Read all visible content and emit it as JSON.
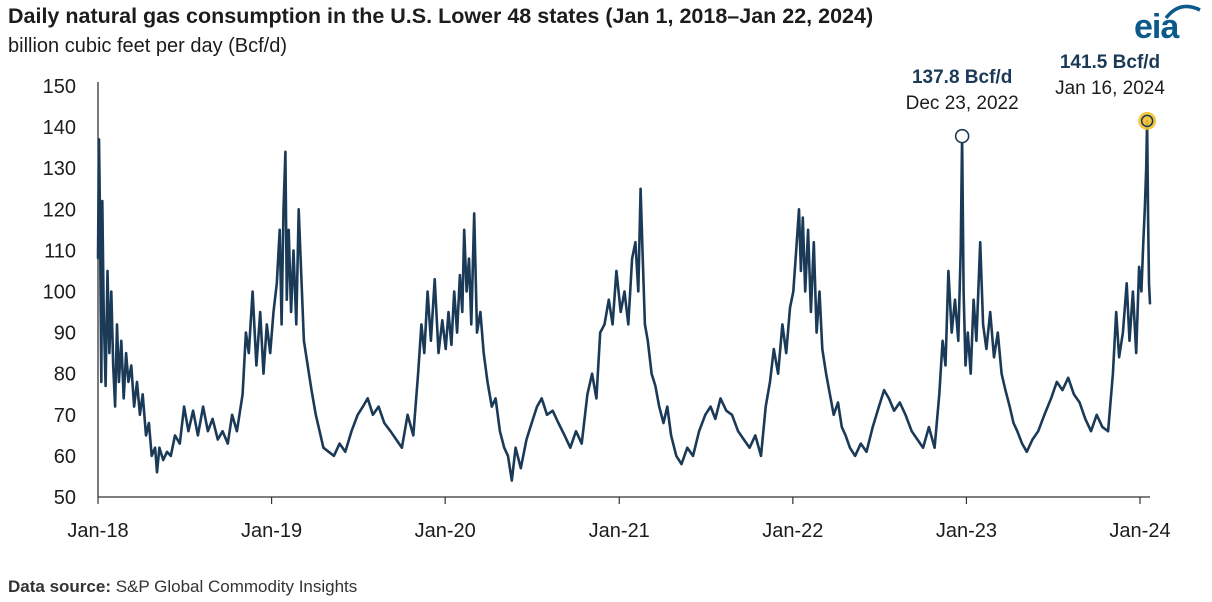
{
  "header": {
    "title": "Daily natural gas consumption in the U.S. Lower 48 states (Jan 1, 2018–Jan 22, 2024)",
    "subtitle": "billion cubic feet per day (Bcf/d)",
    "logo_text": "eia"
  },
  "footer": {
    "source_label": "Data source:",
    "source_value": " S&P Global Commodity Insights"
  },
  "colors": {
    "line": "#1b3a57",
    "highlight": "#f2c12e",
    "axis": "#333333"
  },
  "chart_data": {
    "type": "line",
    "title": "Daily natural gas consumption in the U.S. Lower 48 states (Jan 1, 2018–Jan 22, 2024)",
    "ylabel": "billion cubic feet per day (Bcf/d)",
    "xlabel": "",
    "ylim": [
      50,
      150
    ],
    "yticks": [
      50,
      60,
      70,
      80,
      90,
      100,
      110,
      120,
      130,
      140,
      150
    ],
    "xlim": [
      "2018-01-01",
      "2024-01-22"
    ],
    "xticks": [
      {
        "date": "2018-01-01",
        "label": "Jan-18"
      },
      {
        "date": "2019-01-01",
        "label": "Jan-19"
      },
      {
        "date": "2020-01-01",
        "label": "Jan-20"
      },
      {
        "date": "2021-01-01",
        "label": "Jan-21"
      },
      {
        "date": "2022-01-01",
        "label": "Jan-22"
      },
      {
        "date": "2023-01-01",
        "label": "Jan-23"
      },
      {
        "date": "2024-01-01",
        "label": "Jan-24"
      }
    ],
    "grid": false,
    "series": [
      {
        "points": [
          [
            "2018-01-01",
            108
          ],
          [
            "2018-01-03",
            137
          ],
          [
            "2018-01-05",
            120
          ],
          [
            "2018-01-08",
            78
          ],
          [
            "2018-01-10",
            122
          ],
          [
            "2018-01-13",
            95
          ],
          [
            "2018-01-17",
            77
          ],
          [
            "2018-01-21",
            105
          ],
          [
            "2018-01-25",
            85
          ],
          [
            "2018-01-29",
            100
          ],
          [
            "2018-02-02",
            82
          ],
          [
            "2018-02-06",
            72
          ],
          [
            "2018-02-10",
            92
          ],
          [
            "2018-02-14",
            78
          ],
          [
            "2018-02-19",
            88
          ],
          [
            "2018-02-24",
            74
          ],
          [
            "2018-03-01",
            85
          ],
          [
            "2018-03-06",
            78
          ],
          [
            "2018-03-12",
            82
          ],
          [
            "2018-03-18",
            72
          ],
          [
            "2018-03-24",
            78
          ],
          [
            "2018-03-30",
            70
          ],
          [
            "2018-04-05",
            75
          ],
          [
            "2018-04-12",
            65
          ],
          [
            "2018-04-18",
            68
          ],
          [
            "2018-04-24",
            60
          ],
          [
            "2018-05-01",
            62
          ],
          [
            "2018-05-05",
            56
          ],
          [
            "2018-05-10",
            62
          ],
          [
            "2018-05-18",
            59
          ],
          [
            "2018-05-26",
            61
          ],
          [
            "2018-06-03",
            60
          ],
          [
            "2018-06-12",
            65
          ],
          [
            "2018-06-22",
            63
          ],
          [
            "2018-07-01",
            72
          ],
          [
            "2018-07-10",
            66
          ],
          [
            "2018-07-20",
            71
          ],
          [
            "2018-07-30",
            65
          ],
          [
            "2018-08-10",
            72
          ],
          [
            "2018-08-20",
            66
          ],
          [
            "2018-08-30",
            69
          ],
          [
            "2018-09-10",
            64
          ],
          [
            "2018-09-20",
            66
          ],
          [
            "2018-10-01",
            63
          ],
          [
            "2018-10-10",
            70
          ],
          [
            "2018-10-20",
            66
          ],
          [
            "2018-11-01",
            75
          ],
          [
            "2018-11-08",
            90
          ],
          [
            "2018-11-14",
            85
          ],
          [
            "2018-11-22",
            100
          ],
          [
            "2018-11-30",
            82
          ],
          [
            "2018-12-08",
            95
          ],
          [
            "2018-12-15",
            80
          ],
          [
            "2018-12-22",
            92
          ],
          [
            "2018-12-29",
            85
          ],
          [
            "2019-01-05",
            95
          ],
          [
            "2019-01-12",
            102
          ],
          [
            "2019-01-18",
            115
          ],
          [
            "2019-01-22",
            92
          ],
          [
            "2019-01-26",
            120
          ],
          [
            "2019-01-30",
            134
          ],
          [
            "2019-02-02",
            98
          ],
          [
            "2019-02-06",
            115
          ],
          [
            "2019-02-11",
            95
          ],
          [
            "2019-02-16",
            110
          ],
          [
            "2019-02-22",
            92
          ],
          [
            "2019-02-27",
            120
          ],
          [
            "2019-03-04",
            105
          ],
          [
            "2019-03-10",
            88
          ],
          [
            "2019-03-18",
            82
          ],
          [
            "2019-03-26",
            76
          ],
          [
            "2019-04-04",
            70
          ],
          [
            "2019-04-12",
            66
          ],
          [
            "2019-04-20",
            62
          ],
          [
            "2019-05-01",
            61
          ],
          [
            "2019-05-12",
            60
          ],
          [
            "2019-05-24",
            63
          ],
          [
            "2019-06-05",
            61
          ],
          [
            "2019-06-18",
            66
          ],
          [
            "2019-07-01",
            70
          ],
          [
            "2019-07-12",
            72
          ],
          [
            "2019-07-22",
            74
          ],
          [
            "2019-08-02",
            70
          ],
          [
            "2019-08-14",
            72
          ],
          [
            "2019-08-26",
            68
          ],
          [
            "2019-09-08",
            66
          ],
          [
            "2019-09-20",
            64
          ],
          [
            "2019-10-02",
            62
          ],
          [
            "2019-10-14",
            70
          ],
          [
            "2019-10-26",
            65
          ],
          [
            "2019-11-05",
            80
          ],
          [
            "2019-11-12",
            92
          ],
          [
            "2019-11-18",
            85
          ],
          [
            "2019-11-25",
            100
          ],
          [
            "2019-12-02",
            88
          ],
          [
            "2019-12-10",
            103
          ],
          [
            "2019-12-18",
            85
          ],
          [
            "2019-12-26",
            93
          ],
          [
            "2020-01-02",
            86
          ],
          [
            "2020-01-08",
            95
          ],
          [
            "2020-01-14",
            87
          ],
          [
            "2020-01-20",
            100
          ],
          [
            "2020-01-26",
            90
          ],
          [
            "2020-02-01",
            104
          ],
          [
            "2020-02-06",
            95
          ],
          [
            "2020-02-10",
            115
          ],
          [
            "2020-02-15",
            100
          ],
          [
            "2020-02-20",
            108
          ],
          [
            "2020-02-25",
            92
          ],
          [
            "2020-03-02",
            119
          ],
          [
            "2020-03-08",
            90
          ],
          [
            "2020-03-15",
            95
          ],
          [
            "2020-03-22",
            85
          ],
          [
            "2020-03-30",
            78
          ],
          [
            "2020-04-08",
            72
          ],
          [
            "2020-04-16",
            74
          ],
          [
            "2020-04-25",
            66
          ],
          [
            "2020-05-04",
            62
          ],
          [
            "2020-05-12",
            60
          ],
          [
            "2020-05-20",
            54
          ],
          [
            "2020-05-28",
            62
          ],
          [
            "2020-06-08",
            57
          ],
          [
            "2020-06-20",
            64
          ],
          [
            "2020-07-01",
            68
          ],
          [
            "2020-07-12",
            72
          ],
          [
            "2020-07-22",
            74
          ],
          [
            "2020-08-02",
            70
          ],
          [
            "2020-08-14",
            71
          ],
          [
            "2020-08-26",
            68
          ],
          [
            "2020-09-08",
            65
          ],
          [
            "2020-09-20",
            62
          ],
          [
            "2020-10-02",
            66
          ],
          [
            "2020-10-14",
            63
          ],
          [
            "2020-10-26",
            75
          ],
          [
            "2020-11-05",
            80
          ],
          [
            "2020-11-14",
            74
          ],
          [
            "2020-11-22",
            90
          ],
          [
            "2020-12-01",
            92
          ],
          [
            "2020-12-10",
            98
          ],
          [
            "2020-12-18",
            92
          ],
          [
            "2020-12-26",
            105
          ],
          [
            "2021-01-04",
            95
          ],
          [
            "2021-01-12",
            100
          ],
          [
            "2021-01-20",
            92
          ],
          [
            "2021-01-28",
            108
          ],
          [
            "2021-02-04",
            112
          ],
          [
            "2021-02-10",
            100
          ],
          [
            "2021-02-15",
            125
          ],
          [
            "2021-02-19",
            110
          ],
          [
            "2021-02-24",
            92
          ],
          [
            "2021-03-02",
            88
          ],
          [
            "2021-03-10",
            80
          ],
          [
            "2021-03-18",
            77
          ],
          [
            "2021-03-26",
            72
          ],
          [
            "2021-04-04",
            68
          ],
          [
            "2021-04-12",
            72
          ],
          [
            "2021-04-20",
            65
          ],
          [
            "2021-05-01",
            60
          ],
          [
            "2021-05-12",
            58
          ],
          [
            "2021-05-24",
            62
          ],
          [
            "2021-06-05",
            60
          ],
          [
            "2021-06-18",
            66
          ],
          [
            "2021-07-01",
            70
          ],
          [
            "2021-07-12",
            72
          ],
          [
            "2021-07-22",
            69
          ],
          [
            "2021-08-02",
            74
          ],
          [
            "2021-08-14",
            71
          ],
          [
            "2021-08-26",
            70
          ],
          [
            "2021-09-08",
            66
          ],
          [
            "2021-09-20",
            64
          ],
          [
            "2021-10-02",
            62
          ],
          [
            "2021-10-14",
            65
          ],
          [
            "2021-10-26",
            60
          ],
          [
            "2021-11-05",
            72
          ],
          [
            "2021-11-14",
            78
          ],
          [
            "2021-11-22",
            86
          ],
          [
            "2021-12-01",
            80
          ],
          [
            "2021-12-10",
            92
          ],
          [
            "2021-12-18",
            85
          ],
          [
            "2021-12-26",
            96
          ],
          [
            "2022-01-02",
            100
          ],
          [
            "2022-01-08",
            110
          ],
          [
            "2022-01-14",
            120
          ],
          [
            "2022-01-18",
            105
          ],
          [
            "2022-01-22",
            118
          ],
          [
            "2022-01-27",
            100
          ],
          [
            "2022-02-02",
            115
          ],
          [
            "2022-02-08",
            95
          ],
          [
            "2022-02-14",
            112
          ],
          [
            "2022-02-20",
            90
          ],
          [
            "2022-02-26",
            100
          ],
          [
            "2022-03-04",
            86
          ],
          [
            "2022-03-12",
            80
          ],
          [
            "2022-03-20",
            75
          ],
          [
            "2022-03-28",
            70
          ],
          [
            "2022-04-06",
            73
          ],
          [
            "2022-04-14",
            67
          ],
          [
            "2022-04-22",
            65
          ],
          [
            "2022-05-01",
            62
          ],
          [
            "2022-05-12",
            60
          ],
          [
            "2022-05-24",
            63
          ],
          [
            "2022-06-05",
            61
          ],
          [
            "2022-06-18",
            67
          ],
          [
            "2022-07-01",
            72
          ],
          [
            "2022-07-12",
            76
          ],
          [
            "2022-07-22",
            74
          ],
          [
            "2022-08-02",
            71
          ],
          [
            "2022-08-14",
            73
          ],
          [
            "2022-08-26",
            70
          ],
          [
            "2022-09-08",
            66
          ],
          [
            "2022-09-20",
            64
          ],
          [
            "2022-10-02",
            62
          ],
          [
            "2022-10-14",
            67
          ],
          [
            "2022-10-26",
            62
          ],
          [
            "2022-11-05",
            75
          ],
          [
            "2022-11-12",
            88
          ],
          [
            "2022-11-18",
            82
          ],
          [
            "2022-11-24",
            105
          ],
          [
            "2022-12-01",
            90
          ],
          [
            "2022-12-08",
            98
          ],
          [
            "2022-12-15",
            88
          ],
          [
            "2022-12-20",
            110
          ],
          [
            "2022-12-23",
            137.8
          ],
          [
            "2022-12-26",
            100
          ],
          [
            "2022-12-30",
            82
          ],
          [
            "2023-01-04",
            90
          ],
          [
            "2023-01-10",
            80
          ],
          [
            "2023-01-16",
            98
          ],
          [
            "2023-01-22",
            88
          ],
          [
            "2023-01-30",
            112
          ],
          [
            "2023-02-05",
            92
          ],
          [
            "2023-02-12",
            86
          ],
          [
            "2023-02-20",
            95
          ],
          [
            "2023-02-28",
            84
          ],
          [
            "2023-03-08",
            90
          ],
          [
            "2023-03-16",
            80
          ],
          [
            "2023-03-24",
            76
          ],
          [
            "2023-04-02",
            72
          ],
          [
            "2023-04-10",
            68
          ],
          [
            "2023-04-18",
            66
          ],
          [
            "2023-04-28",
            63
          ],
          [
            "2023-05-08",
            61
          ],
          [
            "2023-05-20",
            64
          ],
          [
            "2023-06-01",
            66
          ],
          [
            "2023-06-14",
            70
          ],
          [
            "2023-06-28",
            74
          ],
          [
            "2023-07-10",
            78
          ],
          [
            "2023-07-22",
            76
          ],
          [
            "2023-08-03",
            79
          ],
          [
            "2023-08-15",
            75
          ],
          [
            "2023-08-27",
            73
          ],
          [
            "2023-09-08",
            69
          ],
          [
            "2023-09-20",
            66
          ],
          [
            "2023-10-02",
            70
          ],
          [
            "2023-10-14",
            67
          ],
          [
            "2023-10-26",
            66
          ],
          [
            "2023-11-05",
            80
          ],
          [
            "2023-11-12",
            95
          ],
          [
            "2023-11-18",
            84
          ],
          [
            "2023-11-26",
            90
          ],
          [
            "2023-12-04",
            102
          ],
          [
            "2023-12-10",
            88
          ],
          [
            "2023-12-17",
            100
          ],
          [
            "2023-12-24",
            85
          ],
          [
            "2023-12-30",
            106
          ],
          [
            "2024-01-04",
            100
          ],
          [
            "2024-01-08",
            112
          ],
          [
            "2024-01-11",
            120
          ],
          [
            "2024-01-14",
            130
          ],
          [
            "2024-01-16",
            141.5
          ],
          [
            "2024-01-18",
            118
          ],
          [
            "2024-01-20",
            102
          ],
          [
            "2024-01-22",
            97
          ]
        ]
      }
    ],
    "annotations": [
      {
        "date": "2022-12-23",
        "value": 137.8,
        "label": "137.8 Bcf/d",
        "sublabel": "Dec 23, 2022",
        "marker": "open-circle"
      },
      {
        "date": "2024-01-16",
        "value": 141.5,
        "label": "141.5 Bcf/d",
        "sublabel": "Jan 16, 2024",
        "marker": "highlight-circle"
      }
    ]
  }
}
